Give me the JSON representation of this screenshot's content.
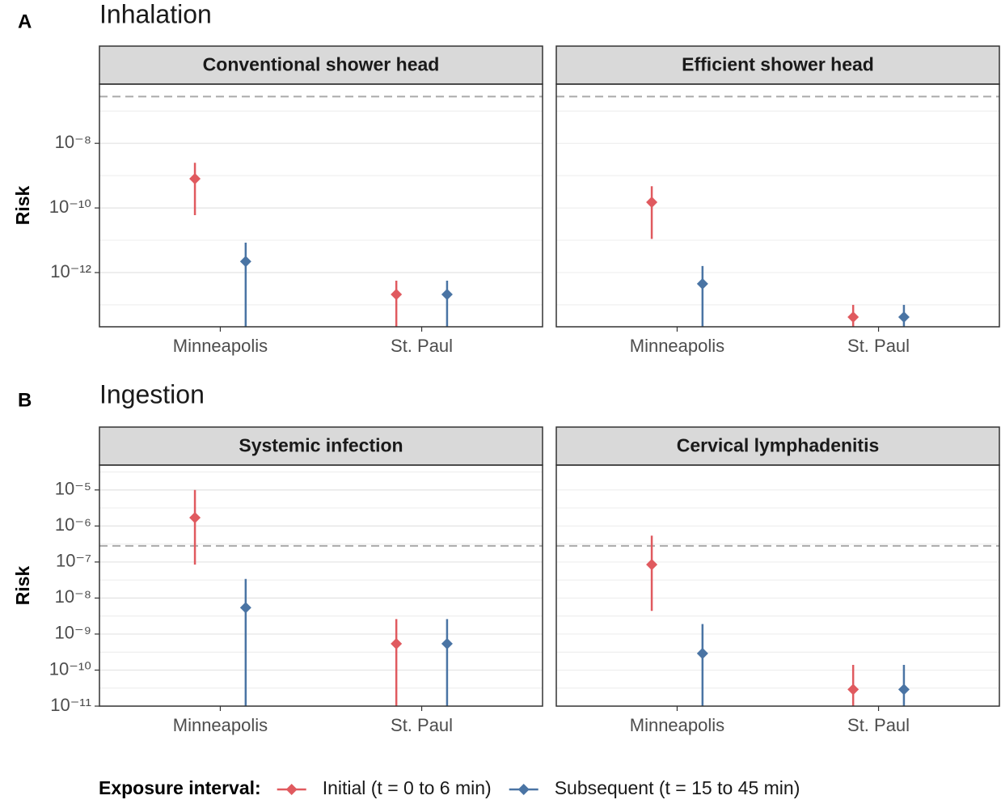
{
  "panels": [
    {
      "tag": "A",
      "title": "Inhalation"
    },
    {
      "tag": "B",
      "title": "Ingestion"
    }
  ],
  "legend_title": "Exposure interval:",
  "chart_data": [
    {
      "type": "errorpoint",
      "title": "Conventional shower head",
      "y_label": "Risk",
      "log_y": true,
      "categories": [
        "Minneapolis",
        "St. Paul"
      ],
      "ylim": [
        6.8e-07,
        2.1e-14
      ],
      "yticks": [
        {
          "value": 1e-08,
          "label": "10⁻⁸"
        },
        {
          "value": 1e-10,
          "label": "10⁻¹⁰"
        },
        {
          "value": 1e-12,
          "label": "10⁻¹²"
        }
      ],
      "minor_yticks": [
        1e-07,
        1e-09,
        1e-11,
        1e-13
      ],
      "threshold": 2.8e-07,
      "series": [
        {
          "name": "Initial (t = 0 to 6 min)",
          "color": "#e05a5f",
          "values": [
            8e-10,
            2.1e-13
          ],
          "lower": [
            6e-11,
            1e-14
          ],
          "upper": [
            2.5e-09,
            5.6e-13
          ]
        },
        {
          "name": "Subsequent (t = 15 to 45 min)",
          "color": "#4a74a4",
          "values": [
            2.2e-12,
            2.1e-13
          ],
          "lower": [
            1e-14,
            1e-14
          ],
          "upper": [
            8.4e-12,
            5.6e-13
          ]
        }
      ]
    },
    {
      "type": "errorpoint",
      "title": "Efficient shower head",
      "log_y": true,
      "categories": [
        "Minneapolis",
        "St. Paul"
      ],
      "ylim": [
        6.8e-07,
        2.1e-14
      ],
      "minor_yticks": [
        1e-07,
        1e-08,
        1e-09,
        1e-10,
        1e-11,
        1e-12,
        1e-13
      ],
      "threshold": 2.8e-07,
      "series": [
        {
          "name": "Initial (t = 0 to 6 min)",
          "color": "#e05a5f",
          "values": [
            1.5e-10,
            4.2e-14
          ],
          "lower": [
            1.1e-11,
            1e-14
          ],
          "upper": [
            4.7e-10,
            1e-13
          ]
        },
        {
          "name": "Subsequent (t = 15 to 45 min)",
          "color": "#4a74a4",
          "values": [
            4.5e-13,
            4.2e-14
          ],
          "lower": [
            1e-14,
            1e-14
          ],
          "upper": [
            1.6e-12,
            1e-13
          ]
        }
      ]
    },
    {
      "type": "errorpoint",
      "title": "Systemic infection",
      "y_label": "Risk",
      "log_y": true,
      "categories": [
        "Minneapolis",
        "St. Paul"
      ],
      "ylim": [
        4.9e-05,
        1e-11
      ],
      "yticks": [
        {
          "value": 1e-05,
          "label": "10⁻⁵"
        },
        {
          "value": 1e-06,
          "label": "10⁻⁶"
        },
        {
          "value": 1e-07,
          "label": "10⁻⁷"
        },
        {
          "value": 1e-08,
          "label": "10⁻⁸"
        },
        {
          "value": 1e-09,
          "label": "10⁻⁹"
        },
        {
          "value": 1e-10,
          "label": "10⁻¹⁰"
        },
        {
          "value": 1e-11,
          "label": "10⁻¹¹"
        }
      ],
      "minor_yticks": [
        3.16e-05,
        3.16e-06,
        3.16e-07,
        3.16e-08,
        3.16e-09,
        3.16e-10,
        3.16e-11
      ],
      "threshold": 2.8e-07,
      "series": [
        {
          "name": "Initial (t = 0 to 6 min)",
          "color": "#e05a5f",
          "values": [
            1.7e-06,
            5.4e-10
          ],
          "lower": [
            8.5e-08,
            1e-12
          ],
          "upper": [
            1e-05,
            2.6e-09
          ]
        },
        {
          "name": "Subsequent (t = 15 to 45 min)",
          "color": "#4a74a4",
          "values": [
            5.4e-09,
            5.4e-10
          ],
          "lower": [
            1e-12,
            1e-12
          ],
          "upper": [
            3.4e-08,
            2.6e-09
          ]
        }
      ]
    },
    {
      "type": "errorpoint",
      "title": "Cervical lymphadenitis",
      "log_y": true,
      "categories": [
        "Minneapolis",
        "St. Paul"
      ],
      "ylim": [
        4.9e-05,
        1e-11
      ],
      "minor_yticks": [
        1e-05,
        3.16e-06,
        1e-06,
        3.16e-07,
        1e-07,
        3.16e-08,
        1e-08,
        3.16e-09,
        1e-09,
        3.16e-10,
        1e-10,
        3.16e-11
      ],
      "threshold": 2.8e-07,
      "series": [
        {
          "name": "Initial (t = 0 to 6 min)",
          "color": "#e05a5f",
          "values": [
            8.5e-08,
            2.9e-11
          ],
          "lower": [
            4.4e-09,
            1e-12
          ],
          "upper": [
            5.4e-07,
            1.4e-10
          ]
        },
        {
          "name": "Subsequent (t = 15 to 45 min)",
          "color": "#4a74a4",
          "values": [
            2.9e-10,
            2.9e-11
          ],
          "lower": [
            1e-12,
            1e-12
          ],
          "upper": [
            1.9e-09,
            1.4e-10
          ]
        }
      ]
    }
  ]
}
